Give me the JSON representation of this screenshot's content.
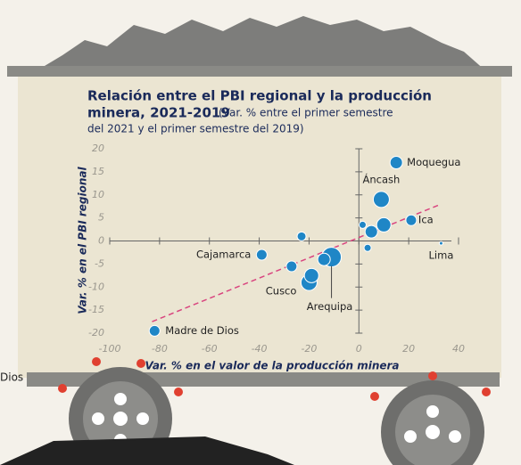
{
  "chart_data": {
    "type": "scatter",
    "title": "Relación entre el PBI regional y la producción",
    "title_line2": "minera, 2021-2019",
    "subtitle_line1": "(Var. % entre el primer semestre",
    "subtitle_line2": "del 2021 y el primer semestre del 2019)",
    "xlabel": "Var. % en el valor de la producción minera",
    "ylabel": "Var. % en el PBI regional",
    "xlim": [
      -100,
      40
    ],
    "xticks": [
      -100,
      -80,
      -60,
      -40,
      -20,
      0,
      20,
      40
    ],
    "ylim": [
      -20,
      20
    ],
    "yticks": [
      -20,
      -15,
      -10,
      -5,
      0,
      5,
      10,
      15,
      20
    ],
    "series": [
      {
        "color": "#1f86c6",
        "x": [
          15,
          9,
          21,
          33,
          -39,
          -82,
          -20,
          -11,
          -23,
          -27,
          -19,
          1.5,
          5,
          10,
          3.5,
          -14
        ],
        "values": [
          17,
          9,
          4.5,
          -0.5,
          -3,
          -19.5,
          -9,
          -3.5,
          1,
          -5.5,
          -7.5,
          3.5,
          2,
          3.5,
          -1.5,
          -4
        ],
        "sizes": [
          7,
          9,
          6,
          2,
          6,
          6,
          9,
          11,
          5,
          6,
          8,
          4,
          7,
          8,
          4,
          7
        ]
      }
    ],
    "point_labels": [
      "Moquegua",
      "Áncash",
      "Ica",
      "Lima",
      "Cajamarca",
      "Madre de Dios",
      "Cusco",
      "Arequipa",
      null,
      null,
      null,
      null,
      null,
      null,
      null,
      null
    ],
    "trendline": {
      "x": [
        -83,
        33
      ],
      "y": [
        -17.5,
        8
      ],
      "color": "#d9457f"
    },
    "side_text": "Dios"
  }
}
